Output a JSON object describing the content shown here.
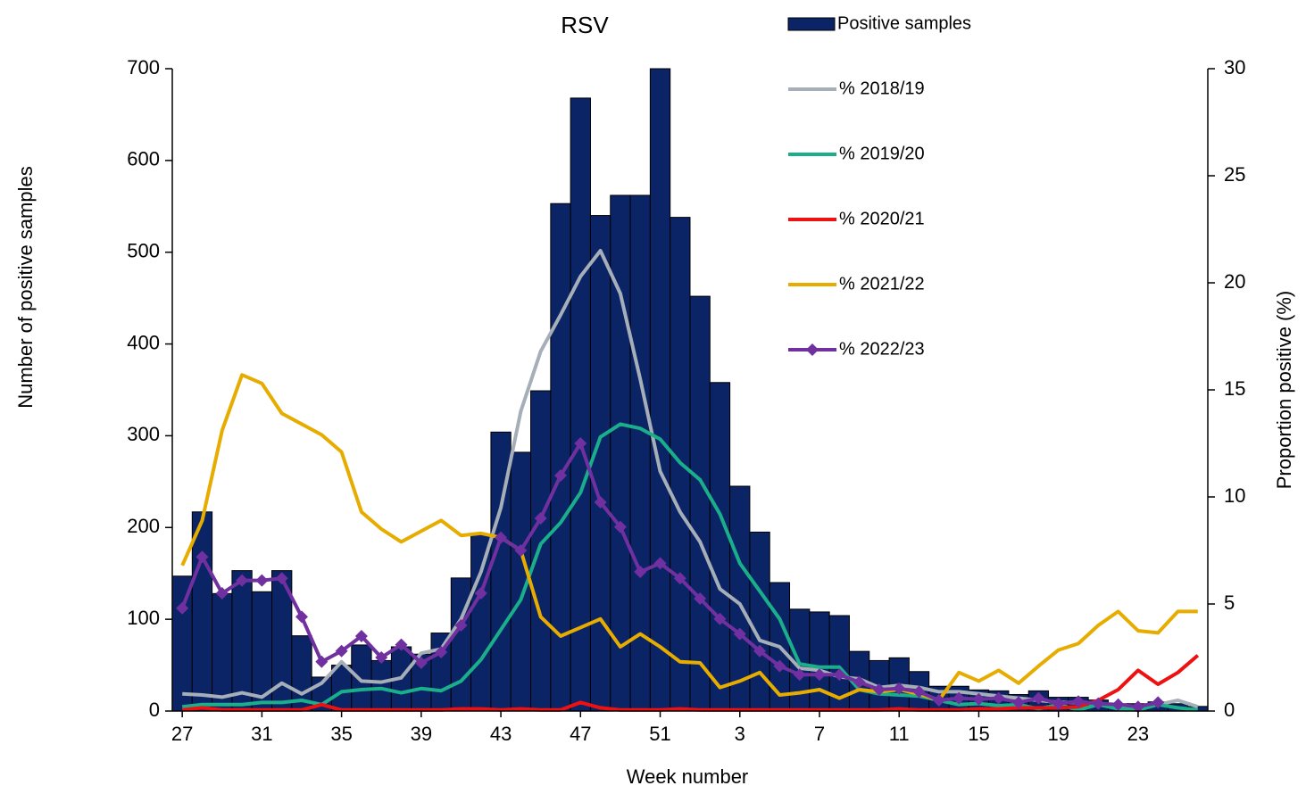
{
  "chart_data": {
    "type": "bar",
    "title": "RSV",
    "x_label": "Week number",
    "y_label": "Number of positive samples",
    "y2_label": "Proportion positive (%)",
    "categories": [
      "27",
      null,
      null,
      null,
      "31",
      null,
      null,
      null,
      "35",
      null,
      null,
      null,
      "39",
      null,
      null,
      null,
      "43",
      null,
      null,
      null,
      "47",
      null,
      null,
      null,
      "51",
      null,
      null,
      null,
      "3",
      null,
      null,
      null,
      "7",
      null,
      null,
      null,
      "11",
      null,
      null,
      null,
      "15",
      null,
      null,
      null,
      "19",
      null,
      null,
      null,
      "23",
      null,
      null,
      null
    ],
    "ylim": [
      0,
      700
    ],
    "yticks": [
      0,
      100,
      200,
      300,
      400,
      500,
      600,
      700
    ],
    "y2lim": [
      0,
      30
    ],
    "y2ticks": [
      0,
      5,
      10,
      15,
      20,
      25,
      30
    ],
    "series": [
      {
        "name": "Positive samples",
        "type": "bar",
        "color": "#0b2466",
        "values": [
          147,
          217,
          128,
          153,
          130,
          153,
          82,
          37,
          50,
          72,
          55,
          70,
          62,
          85,
          145,
          192,
          304,
          282,
          349,
          553,
          668,
          540,
          562,
          562,
          700,
          538,
          452,
          358,
          245,
          195,
          140,
          111,
          108,
          104,
          65,
          55,
          58,
          43,
          27,
          27,
          23,
          22,
          18,
          22,
          15,
          15,
          12,
          8,
          8,
          10,
          8,
          5
        ]
      },
      {
        "name": "% 2018/19",
        "type": "line",
        "axis": "y2",
        "color": "#a6aeb8",
        "values": [
          0.8,
          0.75,
          0.65,
          0.85,
          0.65,
          1.3,
          0.8,
          1.3,
          2.3,
          1.4,
          1.35,
          1.55,
          2.7,
          2.9,
          4.3,
          6.5,
          9.5,
          14,
          16.8,
          18.5,
          20.3,
          21.5,
          19.5,
          15.5,
          11.2,
          9.3,
          7.9,
          5.7,
          5.0,
          3.3,
          3.0,
          2.0,
          1.9,
          1.6,
          1.5,
          1.1,
          1.2,
          1.1,
          0.9,
          0.9,
          0.8,
          0.7,
          0.6,
          0.5,
          0.4,
          0.4,
          0.3,
          0.2,
          0.2,
          0.3,
          0.5,
          0.2
        ]
      },
      {
        "name": "% 2019/20",
        "type": "line",
        "axis": "y2",
        "color": "#1aae8a",
        "values": [
          0.2,
          0.3,
          0.3,
          0.3,
          0.4,
          0.4,
          0.5,
          0.3,
          0.9,
          1.0,
          1.05,
          0.85,
          1.05,
          0.95,
          1.4,
          2.4,
          3.8,
          5.2,
          7.8,
          8.8,
          10.2,
          12.8,
          13.4,
          13.2,
          12.7,
          11.6,
          10.8,
          9.2,
          6.9,
          5.6,
          4.3,
          2.2,
          2.05,
          2.05,
          1.0,
          0.8,
          0.75,
          0.7,
          0.5,
          0.3,
          0.35,
          0.25,
          0.3,
          0.1,
          0.3,
          0.05,
          0.3,
          0.1,
          0.05,
          0.3,
          0.15,
          0.05
        ]
      },
      {
        "name": "% 2020/21",
        "type": "line",
        "axis": "y2",
        "color": "#ee1111",
        "values": [
          0.05,
          0.15,
          0.05,
          0.05,
          0.05,
          0.05,
          0.05,
          0.3,
          0.05,
          0.05,
          0.05,
          0.05,
          0.05,
          0.05,
          0.1,
          0.1,
          0.05,
          0.1,
          0.05,
          0.05,
          0.4,
          0.15,
          0.05,
          0.05,
          0.05,
          0.1,
          0.05,
          0.05,
          0.05,
          0.05,
          0.05,
          0.05,
          0.05,
          0.05,
          0.05,
          0.05,
          0.1,
          0.05,
          0.05,
          0.05,
          0.1,
          0.1,
          0.15,
          0.15,
          0.15,
          0.2,
          0.5,
          1.0,
          1.9,
          1.25,
          1.8,
          2.6
        ]
      },
      {
        "name": "% 2021/22",
        "type": "line",
        "axis": "y2",
        "color": "#e6ac00",
        "values": [
          6.8,
          8.9,
          13.1,
          15.7,
          15.3,
          13.9,
          13.4,
          12.9,
          12.1,
          9.3,
          8.5,
          7.9,
          8.4,
          8.9,
          8.2,
          8.3,
          8.1,
          7.5,
          4.4,
          3.5,
          3.9,
          4.3,
          3.0,
          3.6,
          3.0,
          2.3,
          2.25,
          1.1,
          1.4,
          1.8,
          0.75,
          0.85,
          1.0,
          0.6,
          1.0,
          0.9,
          1.0,
          0.8,
          0.5,
          1.8,
          1.4,
          1.9,
          1.3,
          2.1,
          2.85,
          3.15,
          4.0,
          4.65,
          3.75,
          3.65,
          4.65,
          4.65
        ]
      },
      {
        "name": "% 2022/23",
        "type": "line",
        "axis": "y2",
        "color": "#7030a0",
        "marker": "diamond",
        "values": [
          4.8,
          7.2,
          5.5,
          6.1,
          6.1,
          6.2,
          4.4,
          2.3,
          2.8,
          3.5,
          2.5,
          3.1,
          2.25,
          2.75,
          4.0,
          5.5,
          8.1,
          7.5,
          9.0,
          11.0,
          12.5,
          9.75,
          8.6,
          6.5,
          6.9,
          6.2,
          5.25,
          4.3,
          3.6,
          2.8,
          2.1,
          1.7,
          1.7,
          1.7,
          1.35,
          1.0,
          1.05,
          0.9,
          0.5,
          0.6,
          0.55,
          0.6,
          0.4,
          0.6,
          0.35,
          0.45,
          0.35,
          0.3,
          0.2,
          0.4,
          null,
          null
        ]
      }
    ]
  }
}
